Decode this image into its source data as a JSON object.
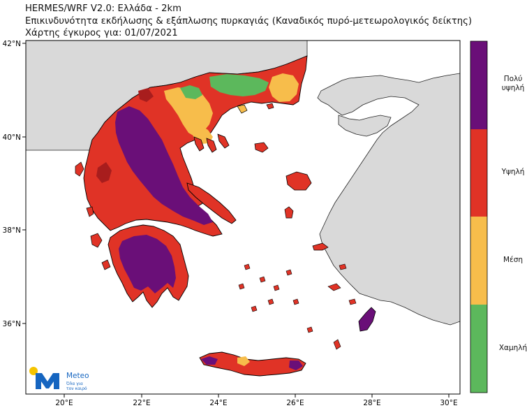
{
  "title": {
    "line1": "HERMES/WRF V2.0: Ελλάδα - 2km",
    "line2": "Επικινδυνότητα εκδήλωσης & εξάπλωσης πυρκαγιάς (Καναδικός πυρό-μετεωρολογικός δείκτης)",
    "line3": "Χάρτης έγκυρος για: 01/07/2021"
  },
  "axes": {
    "lat_ticks": [
      "42°N",
      "40°N",
      "38°N",
      "36°N"
    ],
    "lon_ticks": [
      "20°E",
      "22°E",
      "24°E",
      "26°E",
      "28°E",
      "30°E"
    ]
  },
  "legend": {
    "items": [
      {
        "label_lines": [
          "Πολύ",
          "υψηλή"
        ],
        "color": "#6a0f78"
      },
      {
        "label_lines": [
          "Υψηλή"
        ],
        "color": "#e03326"
      },
      {
        "label_lines": [
          "Μέση"
        ],
        "color": "#f7bd4b"
      },
      {
        "label_lines": [
          "Χαμηλή"
        ],
        "color": "#5cb85c"
      }
    ]
  },
  "colors": {
    "sea": "#ffffff",
    "land_outside": "#d9d9d9",
    "very_high": "#6a0f78",
    "high": "#e03326",
    "medium": "#f7bd4b",
    "low": "#5cb85c",
    "dark_red": "#a81d1d",
    "coast": "#000000"
  },
  "logo": {
    "name": "Meteo",
    "tagline_line1": "Όλα για",
    "tagline_line2": "τον καιρό",
    "brand_color": "#1565c0",
    "sun_color": "#f5c400"
  }
}
